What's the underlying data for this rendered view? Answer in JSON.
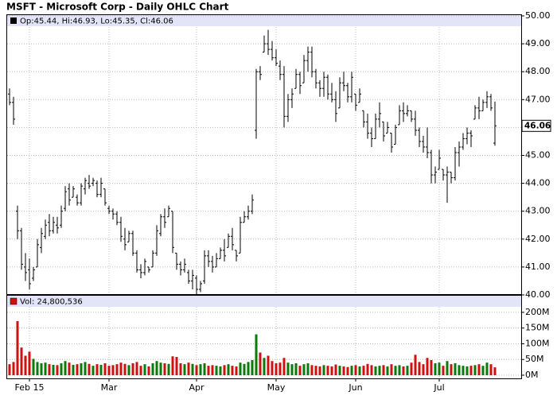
{
  "chart_data": {
    "type": "ohlc",
    "title": "MSFT - Microsoft Corp - Daily OHLC Chart",
    "legend_text": "Op:45.44, Hi:46.93, Lo:45.35, Cl:46.06",
    "color": "#000000",
    "categories": [
      null,
      null,
      null,
      null,
      null,
      "Feb 15",
      null,
      null,
      null,
      null,
      null,
      null,
      null,
      null,
      null,
      null,
      null,
      null,
      null,
      null,
      null,
      null,
      null,
      null,
      null,
      "Mar",
      null,
      null,
      null,
      null,
      null,
      null,
      null,
      null,
      null,
      null,
      null,
      null,
      null,
      null,
      null,
      null,
      null,
      null,
      null,
      null,
      null,
      "Apr",
      null,
      null,
      null,
      null,
      null,
      null,
      null,
      null,
      null,
      null,
      null,
      null,
      null,
      null,
      null,
      null,
      null,
      null,
      null,
      "May",
      null,
      null,
      null,
      null,
      null,
      null,
      null,
      null,
      null,
      null,
      null,
      null,
      null,
      null,
      null,
      null,
      null,
      null,
      null,
      "Jun",
      null,
      null,
      null,
      null,
      null,
      null,
      null,
      null,
      null,
      null,
      null,
      null,
      null,
      null,
      null,
      null,
      null,
      null,
      null,
      null,
      "Jul",
      null,
      null,
      null,
      null,
      null,
      null,
      null,
      null,
      null,
      null,
      null,
      null,
      null,
      null
    ],
    "high": [
      47.4,
      47.1,
      43.2,
      42.4,
      41.5,
      41.3,
      41.0,
      42.0,
      42.4,
      42.7,
      42.9,
      42.8,
      42.8,
      43.2,
      43.9,
      44.0,
      43.9,
      43.6,
      44.0,
      44.2,
      44.3,
      44.2,
      44.1,
      44.2,
      43.8,
      43.2,
      43.1,
      43.0,
      42.8,
      42.4,
      42.3,
      42.3,
      41.6,
      41.1,
      41.3,
      41.0,
      41.6,
      42.5,
      42.9,
      43.1,
      43.2,
      43.0,
      41.5,
      41.2,
      41.3,
      40.9,
      40.9,
      40.7,
      40.5,
      41.6,
      41.6,
      41.4,
      41.5,
      41.7,
      42.0,
      42.2,
      42.4,
      41.6,
      42.8,
      43.0,
      43.2,
      43.6,
      48.1,
      48.2,
      49.3,
      49.5,
      49.1,
      48.8,
      48.4,
      48.2,
      47.2,
      47.4,
      48.1,
      48.0,
      48.6,
      48.9,
      48.9,
      48.1,
      47.7,
      48.0,
      47.9,
      47.6,
      47.3,
      47.8,
      48.0,
      47.6,
      48.0,
      47.2,
      47.4,
      46.6,
      46.5,
      46.0,
      46.5,
      46.9,
      46.2,
      46.2,
      45.8,
      46.1,
      46.8,
      46.9,
      46.8,
      46.6,
      46.6,
      46.0,
      45.7,
      46.0,
      45.2,
      44.6,
      45.2,
      44.5,
      44.6,
      44.4,
      45.3,
      45.5,
      45.8,
      46.0,
      45.9,
      46.8,
      47.1,
      47.0,
      47.3,
      47.2,
      46.93
    ],
    "low": [
      46.8,
      46.1,
      42.0,
      40.9,
      40.5,
      40.2,
      40.5,
      41.0,
      41.5,
      42.0,
      42.1,
      42.2,
      42.2,
      42.4,
      43.0,
      43.2,
      43.5,
      43.2,
      43.2,
      43.6,
      43.8,
      43.9,
      43.5,
      43.5,
      43.2,
      42.9,
      42.7,
      42.5,
      41.9,
      41.6,
      41.9,
      41.4,
      40.8,
      40.6,
      40.7,
      40.8,
      41.0,
      41.4,
      42.1,
      42.4,
      42.8,
      41.5,
      40.9,
      40.7,
      40.8,
      40.4,
      40.2,
      40.0,
      40.1,
      40.4,
      41.0,
      40.8,
      41.0,
      41.3,
      41.2,
      41.7,
      41.6,
      41.2,
      41.5,
      42.6,
      42.7,
      42.9,
      45.6,
      47.7,
      48.7,
      48.6,
      48.4,
      48.2,
      47.7,
      46.0,
      46.2,
      46.7,
      47.4,
      47.2,
      47.6,
      48.0,
      47.8,
      47.4,
      47.1,
      47.1,
      47.0,
      46.9,
      46.2,
      46.7,
      47.3,
      46.9,
      46.9,
      46.6,
      46.9,
      46.0,
      45.6,
      45.3,
      45.6,
      46.0,
      45.5,
      45.8,
      45.1,
      45.4,
      46.1,
      46.2,
      46.4,
      46.2,
      45.7,
      45.3,
      45.1,
      44.9,
      44.0,
      44.0,
      44.5,
      44.1,
      43.3,
      44.0,
      44.1,
      44.6,
      45.2,
      45.4,
      45.3,
      46.3,
      46.3,
      46.6,
      46.7,
      46.6,
      45.35
    ],
    "open": [
      47.2,
      46.9,
      43.0,
      42.3,
      41.0,
      40.9,
      40.6,
      41.0,
      41.7,
      42.1,
      42.6,
      42.3,
      42.5,
      42.5,
      43.1,
      43.8,
      43.5,
      43.5,
      43.3,
      43.8,
      44.0,
      44.0,
      44.0,
      43.6,
      43.8,
      43.1,
      43.0,
      42.9,
      42.6,
      42.0,
      41.9,
      42.2,
      41.5,
      40.9,
      40.8,
      41.0,
      41.0,
      41.5,
      42.2,
      42.8,
      42.8,
      43.0,
      41.5,
      41.1,
      40.9,
      40.8,
      40.5,
      40.6,
      40.2,
      40.5,
      41.4,
      41.2,
      41.0,
      41.3,
      41.6,
      41.7,
      42.1,
      41.6,
      41.5,
      42.6,
      42.8,
      43.0,
      45.9,
      48.0,
      48.7,
      49.0,
      48.8,
      48.5,
      48.2,
      47.9,
      46.4,
      47.0,
      47.4,
      47.9,
      47.6,
      48.4,
      48.7,
      48.0,
      47.6,
      47.4,
      47.8,
      47.2,
      47.0,
      46.7,
      47.6,
      47.5,
      47.1,
      47.2,
      46.9,
      46.6,
      46.2,
      45.8,
      45.6,
      46.3,
      46.2,
      45.8,
      45.8,
      45.4,
      46.1,
      46.6,
      46.5,
      46.6,
      46.3,
      45.9,
      45.5,
      45.3,
      45.1,
      44.3,
      44.5,
      44.5,
      44.3,
      44.4,
      44.2,
      45.1,
      45.3,
      45.6,
      45.8,
      46.3,
      46.7,
      46.6,
      46.9,
      47.1,
      45.44
    ],
    "close": [
      46.9,
      46.3,
      42.3,
      41.1,
      40.8,
      40.4,
      40.9,
      41.8,
      42.2,
      42.5,
      42.3,
      42.6,
      42.4,
      43.0,
      43.7,
      43.4,
      43.8,
      43.3,
      43.9,
      44.1,
      43.9,
      44.1,
      43.6,
      44.0,
      43.3,
      43.0,
      42.9,
      42.6,
      42.1,
      41.8,
      42.2,
      41.5,
      40.9,
      40.8,
      41.2,
      40.9,
      41.5,
      42.3,
      42.8,
      42.6,
      43.1,
      41.7,
      41.1,
      40.9,
      41.1,
      40.5,
      40.7,
      40.2,
      40.4,
      41.4,
      41.2,
      41.0,
      41.3,
      41.6,
      41.4,
      42.1,
      41.8,
      41.4,
      42.6,
      42.8,
      43.0,
      43.4,
      48.0,
      47.9,
      49.0,
      48.8,
      48.5,
      48.3,
      47.9,
      46.4,
      47.0,
      47.2,
      47.9,
      47.5,
      48.4,
      48.7,
      48.0,
      47.6,
      47.4,
      47.8,
      47.2,
      47.0,
      46.5,
      47.6,
      47.5,
      47.1,
      47.8,
      46.8,
      47.2,
      46.2,
      45.8,
      45.6,
      46.3,
      46.5,
      45.7,
      46.0,
      45.3,
      46.0,
      46.6,
      46.5,
      46.6,
      46.3,
      45.9,
      45.5,
      45.3,
      45.1,
      44.3,
      44.4,
      44.9,
      44.3,
      44.4,
      44.2,
      45.1,
      45.3,
      45.6,
      45.8,
      45.7,
      46.7,
      46.6,
      46.9,
      47.1,
      46.7,
      46.06
    ],
    "ylim": [
      40,
      50
    ],
    "yticks": [
      {
        "value": 40,
        "label": "40.00"
      },
      {
        "value": 41,
        "label": "41.00"
      },
      {
        "value": 42,
        "label": "42.00"
      },
      {
        "value": 43,
        "label": "43.00"
      },
      {
        "value": 44,
        "label": "44.00"
      },
      {
        "value": 45,
        "label": "45.00"
      },
      {
        "value": 46,
        "label": "46.00"
      },
      {
        "value": 47,
        "label": "47.00"
      },
      {
        "value": 48,
        "label": "48.00"
      },
      {
        "value": 49,
        "label": "49.00"
      },
      {
        "value": 50,
        "label": "50.00"
      }
    ],
    "grid": true,
    "volume": {
      "type": "bar",
      "legend_text": "Vol: 24,800,536",
      "up_color": "#0a7a0a",
      "down_color": "#cc1111",
      "values": [
        35,
        42,
        172,
        88,
        62,
        75,
        52,
        42,
        38,
        40,
        35,
        33,
        32,
        38,
        45,
        40,
        33,
        35,
        38,
        42,
        36,
        30,
        35,
        33,
        38,
        30,
        32,
        35,
        40,
        36,
        32,
        38,
        42,
        30,
        35,
        28,
        38,
        45,
        40,
        38,
        36,
        60,
        58,
        38,
        35,
        40,
        36,
        32,
        35,
        38,
        30,
        32,
        30,
        28,
        32,
        35,
        30,
        28,
        40,
        36,
        42,
        48,
        130,
        72,
        55,
        62,
        45,
        38,
        40,
        55,
        40,
        35,
        38,
        30,
        35,
        38,
        32,
        30,
        28,
        32,
        30,
        28,
        34,
        30,
        28,
        26,
        30,
        32,
        28,
        30,
        36,
        32,
        28,
        30,
        32,
        28,
        35,
        30,
        32,
        28,
        30,
        40,
        65,
        42,
        35,
        55,
        48,
        38,
        40,
        30,
        45,
        35,
        38,
        32,
        30,
        28,
        30,
        32,
        35,
        30,
        40,
        35,
        25
      ],
      "ylim": [
        0,
        220
      ],
      "yticks": [
        {
          "value": 0,
          "label": "0M"
        },
        {
          "value": 50,
          "label": "50M"
        },
        {
          "value": 100,
          "label": "100M"
        },
        {
          "value": 150,
          "label": "150M"
        },
        {
          "value": 200,
          "label": "200M"
        }
      ]
    }
  }
}
